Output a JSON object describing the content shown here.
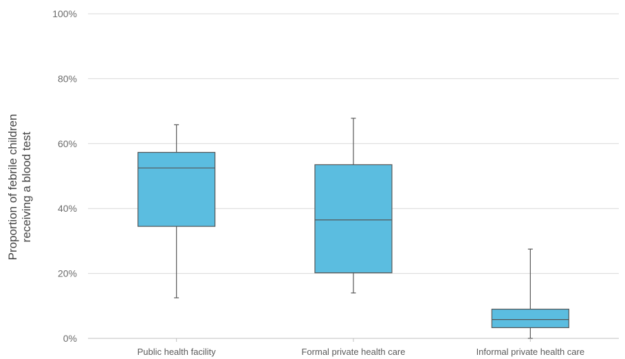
{
  "chart_data": {
    "type": "box",
    "ylabel_lines": [
      "Proportion of febrile children",
      "receiving a blood test"
    ],
    "ylim": [
      0,
      100
    ],
    "y_ticks": [
      0,
      20,
      40,
      60,
      80,
      100
    ],
    "y_tick_labels": [
      "0%",
      "20%",
      "40%",
      "60%",
      "80%",
      "100%"
    ],
    "grid": true,
    "categories": [
      "Public health facility",
      "Formal private health care",
      "Informal private health care"
    ],
    "boxes": [
      {
        "category": "Public health facility",
        "min": 12.5,
        "q1": 34.5,
        "median": 52.5,
        "q3": 57.3,
        "max": 65.8
      },
      {
        "category": "Formal private health care",
        "min": 14,
        "q1": 20.2,
        "median": 36.5,
        "q3": 53.5,
        "max": 67.8
      },
      {
        "category": "Informal private health care",
        "min": 0,
        "q1": 3.3,
        "median": 5.8,
        "q3": 9.0,
        "max": 27.5
      }
    ],
    "colors": {
      "box_fill": "#5bbde0",
      "box_stroke": "#555555",
      "grid": "#d9d9d9",
      "axis": "#bfbfbf"
    }
  }
}
